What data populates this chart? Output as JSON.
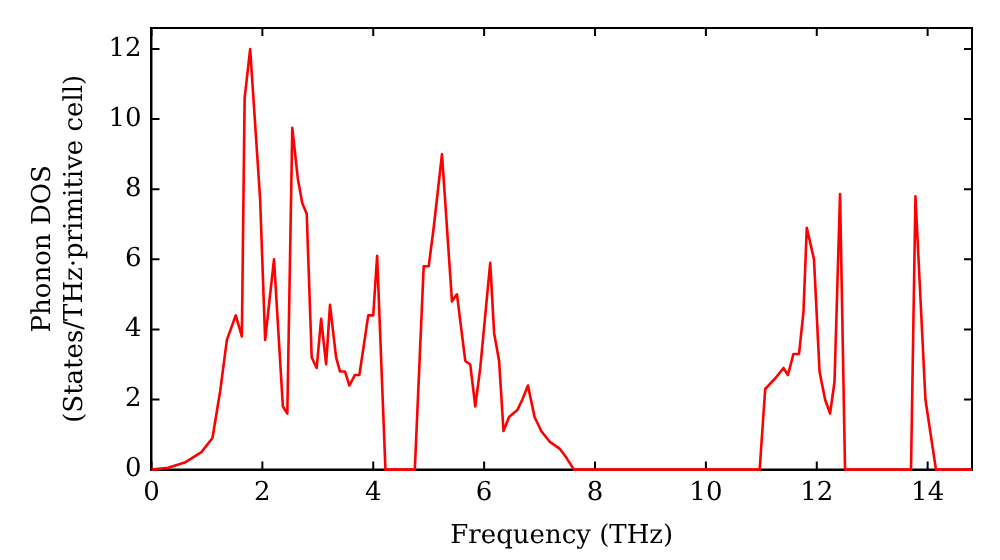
{
  "chart_data": {
    "type": "line",
    "xlabel": "Frequency (THz)",
    "ylabel": "Phonon DOS\n(States/THz·primitive cell)",
    "xlim": [
      0,
      14.8
    ],
    "xticks": [
      0,
      2,
      4,
      6,
      8,
      10,
      12,
      14
    ],
    "ylim": [
      0,
      12.6
    ],
    "yticks": [
      0,
      2,
      4,
      6,
      8,
      10,
      12
    ],
    "grid": false,
    "legend": false,
    "marker": "none",
    "line_style": "solid",
    "series": [
      {
        "color": "#ff0000",
        "x": [
          0,
          0.3,
          0.6,
          0.9,
          1.1,
          1.24,
          1.36,
          1.52,
          1.63,
          1.68,
          1.78,
          1.96,
          2.05,
          2.21,
          2.37,
          2.45,
          2.54,
          2.64,
          2.72,
          2.8,
          2.89,
          2.98,
          3.06,
          3.15,
          3.22,
          3.33,
          3.4,
          3.49,
          3.57,
          3.67,
          3.75,
          3.91,
          4.0,
          4.07,
          4.22,
          4.75,
          4.91,
          5.0,
          5.09,
          5.24,
          5.42,
          5.51,
          5.66,
          5.75,
          5.84,
          5.93,
          6.11,
          6.18,
          6.27,
          6.35,
          6.45,
          6.6,
          6.69,
          6.79,
          6.91,
          7.03,
          7.18,
          7.36,
          7.48,
          7.62,
          10.97,
          11.07,
          11.25,
          11.4,
          11.48,
          11.58,
          11.68,
          11.76,
          11.82,
          11.95,
          12.05,
          12.15,
          12.24,
          12.32,
          12.42,
          12.51,
          13.7,
          13.78,
          13.96,
          14.15,
          14.8
        ],
        "values": [
          0,
          0.05,
          0.2,
          0.5,
          0.9,
          2.25,
          3.7,
          4.4,
          3.8,
          10.6,
          12.0,
          7.7,
          3.7,
          6.0,
          1.8,
          1.6,
          9.75,
          8.3,
          7.6,
          7.3,
          3.2,
          2.9,
          4.3,
          3.0,
          4.7,
          3.2,
          2.8,
          2.8,
          2.4,
          2.7,
          2.7,
          4.4,
          4.4,
          6.1,
          0,
          0,
          5.8,
          5.8,
          6.9,
          9.0,
          4.8,
          5.0,
          3.1,
          3.0,
          1.8,
          2.9,
          5.9,
          3.9,
          3.1,
          1.1,
          1.5,
          1.7,
          2.0,
          2.4,
          1.5,
          1.1,
          0.8,
          0.6,
          0.35,
          0,
          0,
          2.3,
          2.6,
          2.9,
          2.7,
          3.3,
          3.3,
          4.5,
          6.9,
          6.0,
          2.8,
          2.0,
          1.6,
          2.5,
          7.86,
          0,
          0,
          7.8,
          2.0,
          0,
          0
        ]
      }
    ]
  }
}
